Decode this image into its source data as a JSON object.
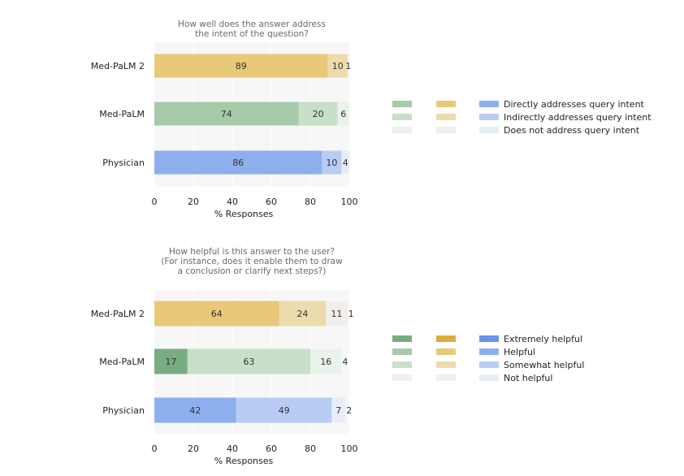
{
  "colors": {
    "plot_bg": "#f7f7f7",
    "gridline": "#ffffff",
    "green": [
      "#78ad81",
      "#a7caaa",
      "#c8dfca",
      "#eaf2eb"
    ],
    "gold": [
      "#dcab3f",
      "#e8c978",
      "#eddbac",
      "#f2efea"
    ],
    "blue": [
      "#6b93e6",
      "#8eafee",
      "#b9cdf4",
      "#e8ecf6"
    ]
  },
  "model_palettes": [
    "gold",
    "green",
    "blue"
  ],
  "chart_data": [
    {
      "type": "bar",
      "orientation": "horizontal",
      "stacked": true,
      "title": [
        "How well does the answer address",
        "the intent of the question?"
      ],
      "categories": [
        "Med-PaLM 2",
        "Med-PaLM",
        "Physician"
      ],
      "series": [
        {
          "name": "Directly addresses query intent",
          "values": [
            89,
            74,
            86
          ]
        },
        {
          "name": "Indirectly addresses query intent",
          "values": [
            10,
            20,
            10
          ]
        },
        {
          "name": "Does not address query intent",
          "values": [
            1,
            6,
            4
          ]
        }
      ],
      "shade_index": [
        1,
        2,
        3
      ],
      "xlim": [
        0,
        100
      ],
      "xticks": [
        0,
        20,
        40,
        60,
        80,
        100
      ],
      "xlabel": "% Responses",
      "legend": {
        "position": "right",
        "labels": [
          "Directly addresses query intent",
          "Indirectly addresses query intent",
          "Does not address query intent"
        ]
      }
    },
    {
      "type": "bar",
      "orientation": "horizontal",
      "stacked": true,
      "title": [
        "How helpful is this answer to the user?",
        "(For instance, does it enable them to draw",
        "a conclusion or clarify next steps?)"
      ],
      "categories": [
        "Med-PaLM 2",
        "Med-PaLM",
        "Physician"
      ],
      "series": [
        {
          "name": "Extremely helpful",
          "values": [
            0,
            17,
            0
          ]
        },
        {
          "name": "Helpful",
          "values": [
            64,
            0,
            42
          ]
        },
        {
          "name": "Somewhat helpful",
          "values": [
            24,
            63,
            49
          ]
        },
        {
          "name": "Not helpful",
          "values": [
            11,
            16,
            7
          ]
        }
      ],
      "extra_labels": [
        {
          "category": "Med-PaLM 2",
          "value": 1
        },
        {
          "category": "Med-PaLM",
          "value": 4
        },
        {
          "category": "Physician",
          "value": 2
        }
      ],
      "shade_index": [
        0,
        1,
        2,
        3
      ],
      "xlim": [
        0,
        100
      ],
      "xticks": [
        0,
        20,
        40,
        60,
        80,
        100
      ],
      "xlabel": "% Responses",
      "legend": {
        "position": "right",
        "labels": [
          "Extremely helpful",
          "Helpful",
          "Somewhat helpful",
          "Not helpful"
        ]
      }
    }
  ]
}
